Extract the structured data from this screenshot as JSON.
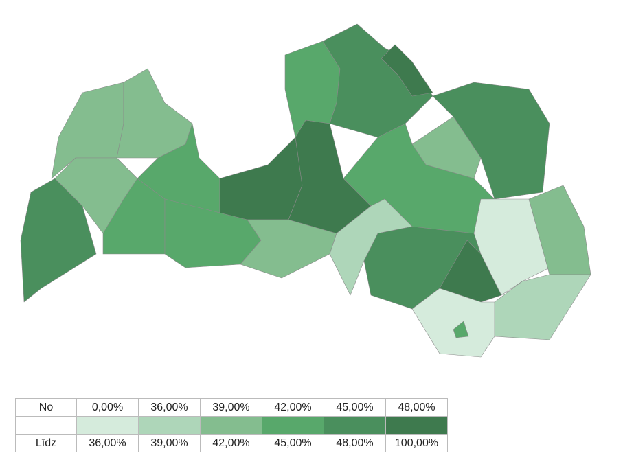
{
  "legend": {
    "from_label": "No",
    "to_label": "Līdz",
    "from": [
      "0,00%",
      "36,00%",
      "39,00%",
      "42,00%",
      "45,00%",
      "48,00%"
    ],
    "to": [
      "36,00%",
      "39,00%",
      "42,00%",
      "45,00%",
      "48,00%",
      "100,00%"
    ],
    "colors": [
      "#d5ebdc",
      "#aed6b9",
      "#84bd8f",
      "#58a86b",
      "#4a8f5d",
      "#3e7a4e"
    ]
  }
}
